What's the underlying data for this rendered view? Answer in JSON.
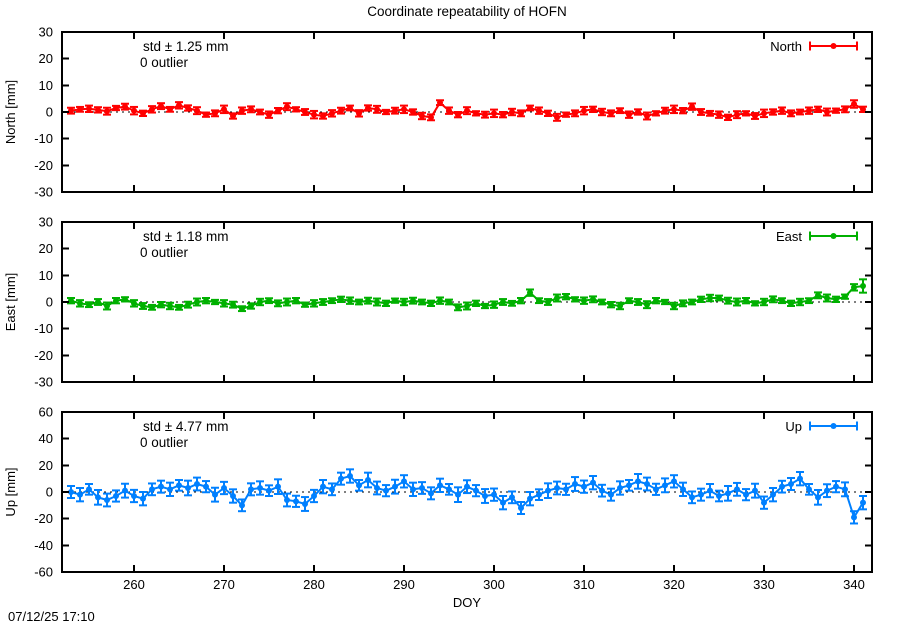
{
  "title": "Coordinate repeatability of HOFN",
  "xlabel": "DOY",
  "footer": {
    "timestamp": "07/12/25 17:10"
  },
  "colors": {
    "north": "#ff0000",
    "east": "#00b000",
    "up": "#0080ff",
    "axis": "#000000"
  },
  "chart_data": [
    {
      "type": "line",
      "name": "North",
      "legend": "North",
      "ylabel": "North [mm]",
      "annotation_std": "std ± 1.25 mm",
      "annotation_outlier": "0 outlier",
      "color": "#ff0000",
      "ylim": [
        -30,
        30
      ],
      "yticks": [
        -30,
        -20,
        -10,
        0,
        10,
        20,
        30
      ],
      "xlim": [
        252,
        342
      ],
      "xticks": [
        260,
        270,
        280,
        290,
        300,
        310,
        320,
        330,
        340
      ],
      "x": [
        253,
        254,
        255,
        256,
        257,
        258,
        259,
        260,
        261,
        262,
        263,
        264,
        265,
        266,
        267,
        268,
        269,
        270,
        271,
        272,
        273,
        274,
        275,
        276,
        277,
        278,
        279,
        280,
        281,
        282,
        283,
        284,
        285,
        286,
        287,
        288,
        289,
        290,
        291,
        292,
        293,
        294,
        295,
        296,
        297,
        298,
        299,
        300,
        301,
        302,
        303,
        304,
        305,
        306,
        307,
        308,
        309,
        310,
        311,
        312,
        313,
        314,
        315,
        316,
        317,
        318,
        319,
        320,
        321,
        322,
        323,
        324,
        325,
        326,
        327,
        328,
        329,
        330,
        331,
        332,
        333,
        334,
        335,
        336,
        337,
        338,
        339,
        340,
        341
      ],
      "values": [
        0.5,
        1,
        1.2,
        0.8,
        0.3,
        1.5,
        2,
        0.5,
        -0.5,
        1,
        2.2,
        1,
        2.5,
        1.5,
        0.5,
        -1,
        -0.5,
        1,
        -1.5,
        0.5,
        1,
        0,
        -1,
        0.5,
        2,
        1,
        0,
        -1,
        -1.5,
        -0.5,
        0.5,
        1.5,
        -0.5,
        1.5,
        1,
        0,
        0.5,
        1,
        0,
        -1.5,
        -2,
        3.5,
        0.5,
        -1,
        0.5,
        -0.5,
        -1,
        -0.5,
        -1,
        0,
        -0.5,
        1.5,
        0.5,
        -0.5,
        -2,
        -1,
        -0.5,
        0.5,
        1,
        0,
        -0.5,
        0.5,
        -1,
        0,
        -1.5,
        -0.5,
        0.5,
        1,
        0.5,
        2,
        0,
        -0.5,
        -1,
        -2,
        -1,
        -0.5,
        -1.5,
        -0.5,
        0,
        0.5,
        -0.5,
        0,
        0.5,
        1,
        0,
        0.5,
        1,
        3,
        1
      ],
      "errors": [
        1.1,
        0.9,
        1.2,
        1.0,
        1.3,
        0.8,
        1.1,
        1.4,
        1.0,
        1.2,
        1.1,
        0.9,
        1.2,
        1.0,
        1.3,
        0.8,
        1.1,
        1.4,
        1.0,
        1.2,
        1.1,
        0.9,
        1.2,
        1.0,
        1.3,
        0.8,
        1.1,
        1.4,
        1.0,
        1.2,
        1.1,
        0.9,
        1.2,
        1.0,
        1.3,
        0.8,
        1.1,
        1.4,
        1.0,
        1.2,
        1.1,
        0.9,
        1.2,
        1.0,
        1.3,
        0.8,
        1.1,
        1.4,
        1.0,
        1.2,
        1.1,
        0.9,
        1.2,
        1.0,
        1.3,
        0.8,
        1.1,
        1.4,
        1.0,
        1.2,
        1.1,
        0.9,
        1.2,
        1.0,
        1.3,
        0.8,
        1.1,
        1.4,
        1.0,
        1.2,
        1.1,
        0.9,
        1.2,
        1.0,
        1.3,
        0.8,
        1.1,
        1.4,
        1.0,
        1.2,
        1.1,
        0.9,
        1.2,
        1.0,
        1.3,
        0.8,
        1.1,
        1.4,
        1.0
      ]
    },
    {
      "type": "line",
      "name": "East",
      "legend": "East",
      "ylabel": "East [mm]",
      "annotation_std": "std ± 1.18 mm",
      "annotation_outlier": "0 outlier",
      "color": "#00b000",
      "ylim": [
        -30,
        30
      ],
      "yticks": [
        -30,
        -20,
        -10,
        0,
        10,
        20,
        30
      ],
      "xlim": [
        252,
        342
      ],
      "xticks": [
        260,
        270,
        280,
        290,
        300,
        310,
        320,
        330,
        340
      ],
      "x": [
        253,
        254,
        255,
        256,
        257,
        258,
        259,
        260,
        261,
        262,
        263,
        264,
        265,
        266,
        267,
        268,
        269,
        270,
        271,
        272,
        273,
        274,
        275,
        276,
        277,
        278,
        279,
        280,
        281,
        282,
        283,
        284,
        285,
        286,
        287,
        288,
        289,
        290,
        291,
        292,
        293,
        294,
        295,
        296,
        297,
        298,
        299,
        300,
        301,
        302,
        303,
        304,
        305,
        306,
        307,
        308,
        309,
        310,
        311,
        312,
        313,
        314,
        315,
        316,
        317,
        318,
        319,
        320,
        321,
        322,
        323,
        324,
        325,
        326,
        327,
        328,
        329,
        330,
        331,
        332,
        333,
        334,
        335,
        336,
        337,
        338,
        339,
        340,
        341
      ],
      "values": [
        0.5,
        -0.5,
        -1,
        0,
        -1.5,
        0.5,
        1,
        -0.5,
        -1.5,
        -2,
        -1,
        -1.5,
        -2,
        -1,
        0,
        0.5,
        0,
        -0.5,
        -1,
        -2.5,
        -1.5,
        0,
        0.5,
        -0.5,
        0,
        0.5,
        -1,
        -0.5,
        0,
        0.5,
        1,
        0.5,
        0,
        0.5,
        0,
        -0.5,
        0.5,
        0,
        0.5,
        0,
        -0.5,
        0.5,
        0,
        -2,
        -1.5,
        -0.5,
        -1.5,
        -1,
        0,
        -0.5,
        0.5,
        3.5,
        0.5,
        0,
        1.5,
        2,
        1,
        0.5,
        1,
        0,
        -1,
        -1.5,
        0.5,
        0,
        -1,
        0.5,
        0,
        -1.5,
        -0.5,
        0,
        1,
        1.5,
        1.5,
        0.5,
        0,
        0.5,
        -0.5,
        0,
        1,
        0.5,
        -0.5,
        0,
        0.5,
        2.5,
        1.5,
        1,
        2,
        5.5,
        6
      ],
      "errors": [
        1.0,
        1.2,
        0.9,
        1.1,
        1.3,
        1.0,
        0.8,
        1.2,
        1.1,
        0.9,
        1.0,
        1.2,
        0.9,
        1.1,
        1.3,
        1.0,
        0.8,
        1.2,
        1.1,
        0.9,
        1.0,
        1.2,
        0.9,
        1.1,
        1.3,
        1.0,
        0.8,
        1.2,
        1.1,
        0.9,
        1.0,
        1.2,
        0.9,
        1.1,
        1.3,
        1.0,
        0.8,
        1.2,
        1.1,
        0.9,
        1.0,
        1.2,
        0.9,
        1.1,
        1.3,
        1.0,
        0.8,
        1.2,
        1.1,
        0.9,
        1.0,
        1.2,
        0.9,
        1.1,
        1.3,
        1.0,
        0.8,
        1.2,
        1.1,
        0.9,
        1.0,
        1.2,
        0.9,
        1.1,
        1.3,
        1.0,
        0.8,
        1.2,
        1.1,
        0.9,
        1.0,
        1.2,
        0.9,
        1.1,
        1.3,
        1.0,
        0.8,
        1.2,
        1.1,
        0.9,
        1.0,
        1.2,
        0.9,
        1.1,
        1.3,
        1.0,
        0.8,
        1.2,
        2.5
      ]
    },
    {
      "type": "line",
      "name": "Up",
      "legend": "Up",
      "ylabel": "Up [mm]",
      "annotation_std": "std ± 4.77 mm",
      "annotation_outlier": "0 outlier",
      "color": "#0080ff",
      "ylim": [
        -60,
        60
      ],
      "yticks": [
        -60,
        -40,
        -20,
        0,
        20,
        40,
        60
      ],
      "xlim": [
        252,
        342
      ],
      "xticks": [
        260,
        270,
        280,
        290,
        300,
        310,
        320,
        330,
        340
      ],
      "x": [
        253,
        254,
        255,
        256,
        257,
        258,
        259,
        260,
        261,
        262,
        263,
        264,
        265,
        266,
        267,
        268,
        269,
        270,
        271,
        272,
        273,
        274,
        275,
        276,
        277,
        278,
        279,
        280,
        281,
        282,
        283,
        284,
        285,
        286,
        287,
        288,
        289,
        290,
        291,
        292,
        293,
        294,
        295,
        296,
        297,
        298,
        299,
        300,
        301,
        302,
        303,
        304,
        305,
        306,
        307,
        308,
        309,
        310,
        311,
        312,
        313,
        314,
        315,
        316,
        317,
        318,
        319,
        320,
        321,
        322,
        323,
        324,
        325,
        326,
        327,
        328,
        329,
        330,
        331,
        332,
        333,
        334,
        335,
        336,
        337,
        338,
        339,
        340,
        341
      ],
      "values": [
        0,
        -2,
        2,
        -4,
        -6,
        -3,
        1,
        -3,
        -5,
        2,
        4,
        2,
        5,
        3,
        6,
        4,
        -2,
        3,
        -3,
        -10,
        2,
        3,
        1,
        4,
        -6,
        -7,
        -9,
        -3,
        4,
        2,
        10,
        12,
        5,
        9,
        3,
        1,
        4,
        8,
        2,
        3,
        -1,
        5,
        2,
        -2,
        4,
        1,
        -3,
        -2,
        -8,
        -4,
        -12,
        -5,
        -2,
        1,
        3,
        2,
        6,
        4,
        7,
        1,
        -2,
        3,
        5,
        8,
        6,
        2,
        5,
        8,
        2,
        -4,
        -2,
        1,
        -3,
        -1,
        2,
        -2,
        1,
        -8,
        -2,
        4,
        6,
        10,
        2,
        -4,
        1,
        4,
        2,
        -19,
        -8
      ],
      "errors": [
        4.5,
        5.0,
        4.0,
        5.5,
        4.8,
        4.2,
        5.2,
        4.6,
        5.0,
        4.4,
        4.5,
        5.0,
        4.0,
        5.5,
        4.8,
        4.2,
        5.2,
        4.6,
        5.0,
        4.4,
        4.5,
        5.0,
        4.0,
        5.5,
        4.8,
        4.2,
        5.2,
        4.6,
        5.0,
        4.4,
        4.5,
        5.0,
        4.0,
        5.5,
        4.8,
        4.2,
        5.2,
        4.6,
        5.0,
        4.4,
        4.5,
        5.0,
        4.0,
        5.5,
        4.8,
        4.2,
        5.2,
        4.6,
        5.0,
        4.4,
        4.5,
        5.0,
        4.0,
        5.5,
        4.8,
        4.2,
        5.2,
        4.6,
        5.0,
        4.4,
        4.5,
        5.0,
        4.0,
        5.5,
        4.8,
        4.2,
        5.2,
        4.6,
        5.0,
        4.4,
        4.5,
        5.0,
        4.0,
        5.5,
        4.8,
        4.2,
        5.2,
        4.6,
        5.0,
        4.4,
        4.5,
        5.0,
        4.0,
        5.5,
        4.8,
        4.2,
        5.2,
        4.6,
        5.0
      ]
    }
  ]
}
